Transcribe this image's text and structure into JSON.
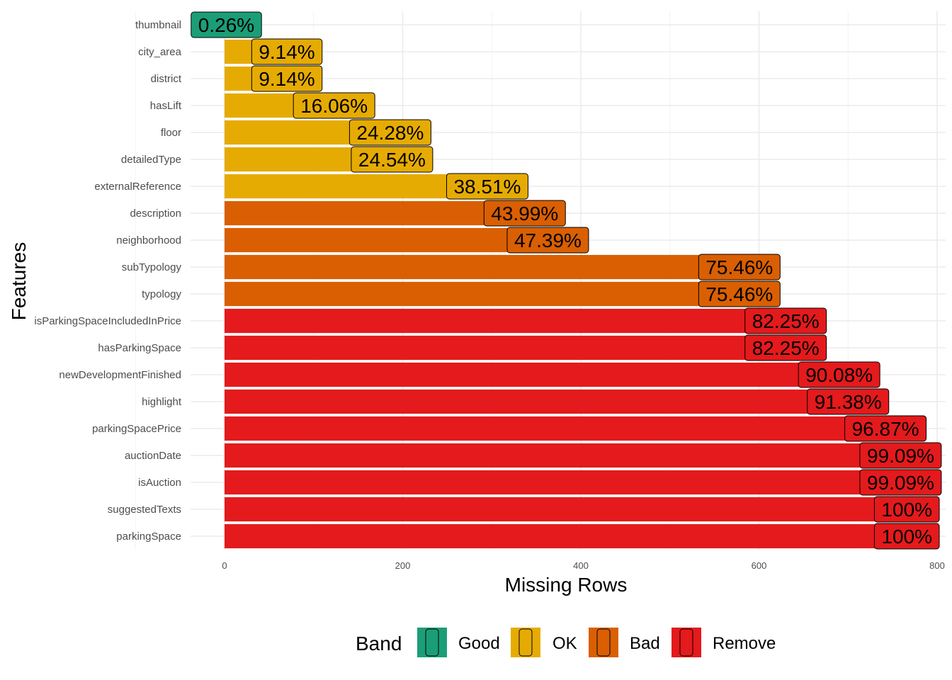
{
  "chart_data": {
    "type": "bar",
    "orientation": "horizontal",
    "xlabel": "Missing Rows",
    "ylabel": "Features",
    "xlim": [
      -38,
      808
    ],
    "x_ticks": [
      0,
      200,
      400,
      600,
      800
    ],
    "grid": true,
    "legend_placement": "bottom",
    "legend_title": "Band",
    "categories": [
      "thumbnail",
      "city_area",
      "district",
      "hasLift",
      "floor",
      "detailedType",
      "externalReference",
      "description",
      "neighborhood",
      "subTypology",
      "typology",
      "isParkingSpaceIncludedInPrice",
      "hasParkingSpace",
      "newDevelopmentFinished",
      "highlight",
      "parkingSpacePrice",
      "auctionDate",
      "isAuction",
      "suggestedTexts",
      "parkingSpace"
    ],
    "values": [
      2,
      70,
      70,
      123,
      186,
      188,
      295,
      337,
      363,
      578,
      578,
      630,
      630,
      690,
      700,
      742,
      759,
      759,
      766,
      766
    ],
    "labels": [
      "0.26%",
      "9.14%",
      "9.14%",
      "16.06%",
      "24.28%",
      "24.54%",
      "38.51%",
      "43.99%",
      "47.39%",
      "75.46%",
      "75.46%",
      "82.25%",
      "82.25%",
      "90.08%",
      "91.38%",
      "96.87%",
      "99.09%",
      "99.09%",
      "100%",
      "100%"
    ],
    "bands": [
      "Good",
      "OK",
      "OK",
      "OK",
      "OK",
      "OK",
      "OK",
      "Bad",
      "Bad",
      "Bad",
      "Bad",
      "Remove",
      "Remove",
      "Remove",
      "Remove",
      "Remove",
      "Remove",
      "Remove",
      "Remove",
      "Remove"
    ],
    "band_colors": {
      "Good": "#1b9e77",
      "OK": "#e6ab02",
      "Bad": "#d95f02",
      "Remove": "#e41a1c"
    },
    "legend": [
      "Good",
      "OK",
      "Bad",
      "Remove"
    ]
  }
}
